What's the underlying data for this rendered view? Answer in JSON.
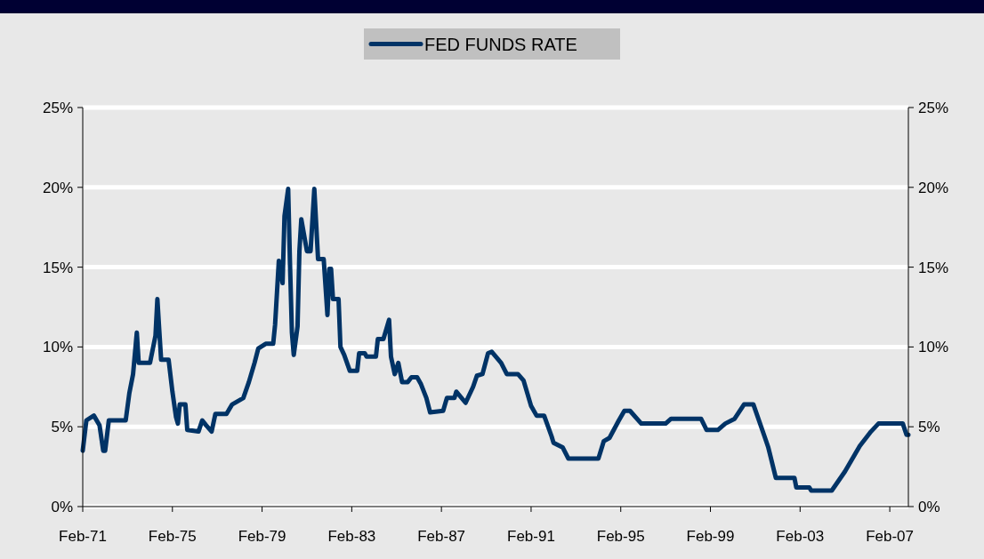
{
  "chart_data": {
    "type": "line",
    "legend": "top",
    "grid": "y",
    "marker": "none",
    "line_style": "solid",
    "xlim": [
      "1971-02",
      "2007-12"
    ],
    "xticks": [
      {
        "value": "1971-02",
        "label": "Feb-71"
      },
      {
        "value": "1975-02",
        "label": "Feb-75"
      },
      {
        "value": "1979-02",
        "label": "Feb-79"
      },
      {
        "value": "1983-02",
        "label": "Feb-83"
      },
      {
        "value": "1987-02",
        "label": "Feb-87"
      },
      {
        "value": "1991-02",
        "label": "Feb-91"
      },
      {
        "value": "1995-02",
        "label": "Feb-95"
      },
      {
        "value": "1999-02",
        "label": "Feb-99"
      },
      {
        "value": "2003-02",
        "label": "Feb-03"
      },
      {
        "value": "2007-02",
        "label": "Feb-07"
      }
    ],
    "ylim": [
      0,
      25
    ],
    "yticks": [
      {
        "value": 0,
        "label": "0%"
      },
      {
        "value": 5,
        "label": "5%"
      },
      {
        "value": 10,
        "label": "10%"
      },
      {
        "value": 15,
        "label": "15%"
      },
      {
        "value": 20,
        "label": "20%"
      },
      {
        "value": 25,
        "label": "25%"
      }
    ],
    "y2lim": [
      0,
      25
    ],
    "y2ticks": [
      {
        "value": 0,
        "label": "0%"
      },
      {
        "value": 5,
        "label": "5%"
      },
      {
        "value": 10,
        "label": "10%"
      },
      {
        "value": 15,
        "label": "15%"
      },
      {
        "value": 20,
        "label": "20%"
      },
      {
        "value": 25,
        "label": "25%"
      }
    ],
    "x": [
      "1971-02",
      "1971-04",
      "1971-08",
      "1971-11",
      "1972-01",
      "1972-02",
      "1972-04",
      "1973-01",
      "1973-03",
      "1973-05",
      "1973-07",
      "1973-08",
      "1974-02",
      "1974-05",
      "1974-06",
      "1974-07",
      "1974-08",
      "1974-12",
      "1975-02",
      "1975-04",
      "1975-05",
      "1975-06",
      "1975-09",
      "1975-10",
      "1976-04",
      "1976-06",
      "1976-08",
      "1976-11",
      "1977-01",
      "1977-07",
      "1977-10",
      "1978-04",
      "1978-07",
      "1978-10",
      "1978-12",
      "1979-04",
      "1979-08",
      "1979-09",
      "1979-11",
      "1980-01",
      "1980-02",
      "1980-04",
      "1980-05",
      "1980-06",
      "1980-07",
      "1980-09",
      "1980-10",
      "1980-11",
      "1981-02",
      "1981-04",
      "1981-06",
      "1981-08",
      "1981-11",
      "1982-01",
      "1982-02",
      "1982-03",
      "1982-04",
      "1982-07",
      "1982-08",
      "1982-10",
      "1983-01",
      "1983-05",
      "1983-06",
      "1983-09",
      "1983-10",
      "1984-03",
      "1984-04",
      "1984-07",
      "1984-10",
      "1984-11",
      "1985-01",
      "1985-03",
      "1985-05",
      "1985-08",
      "1985-10",
      "1986-01",
      "1986-03",
      "1986-06",
      "1986-08",
      "1987-03",
      "1987-05",
      "1987-09",
      "1987-10",
      "1988-03",
      "1988-07",
      "1988-09",
      "1988-12",
      "1989-03",
      "1989-05",
      "1989-10",
      "1990-01",
      "1990-07",
      "1990-10",
      "1991-02",
      "1991-05",
      "1991-09",
      "1992-01",
      "1992-02",
      "1992-07",
      "1992-10",
      "1994-02",
      "1994-05",
      "1994-08",
      "1995-01",
      "1995-04",
      "1995-07",
      "1996-01",
      "1997-02",
      "1997-05",
      "1998-09",
      "1998-12",
      "1999-06",
      "1999-10",
      "2000-03",
      "2000-08",
      "2001-01",
      "2001-07",
      "2001-09",
      "2002-01",
      "2002-11",
      "2002-12",
      "2003-07",
      "2003-08",
      "2004-07",
      "2005-02",
      "2005-10",
      "2006-04",
      "2006-08",
      "2007-09",
      "2007-11",
      "2007-12"
    ],
    "series": [
      {
        "name": "FED FUNDS RATE",
        "color": "#003366",
        "values": [
          3.5,
          5.4,
          5.7,
          5.1,
          3.5,
          3.5,
          5.4,
          5.4,
          7.1,
          8.3,
          10.9,
          9.0,
          9.0,
          10.7,
          13.0,
          11.1,
          9.2,
          9.2,
          7.2,
          5.6,
          5.2,
          6.4,
          6.4,
          4.8,
          4.7,
          5.4,
          5.1,
          4.7,
          5.8,
          5.8,
          6.4,
          6.8,
          7.8,
          9.0,
          9.9,
          10.2,
          10.2,
          11.4,
          15.4,
          14.0,
          18.2,
          19.9,
          15.2,
          10.9,
          9.5,
          11.3,
          16.0,
          18.0,
          16.0,
          16.0,
          19.9,
          15.5,
          15.5,
          12.0,
          14.9,
          14.9,
          13.0,
          13.0,
          10.0,
          9.5,
          8.5,
          8.5,
          9.6,
          9.6,
          9.4,
          9.4,
          10.5,
          10.5,
          11.7,
          9.4,
          8.3,
          9.0,
          7.8,
          7.8,
          8.1,
          8.1,
          7.7,
          6.8,
          5.9,
          6.0,
          6.8,
          6.8,
          7.2,
          6.5,
          7.5,
          8.2,
          8.3,
          9.6,
          9.7,
          9.0,
          8.3,
          8.3,
          7.9,
          6.3,
          5.7,
          5.7,
          4.4,
          4.0,
          3.7,
          3.0,
          3.0,
          4.1,
          4.3,
          5.4,
          6.0,
          6.0,
          5.2,
          5.2,
          5.5,
          5.5,
          4.8,
          4.8,
          5.2,
          5.5,
          6.4,
          6.4,
          4.4,
          3.7,
          1.8,
          1.8,
          1.2,
          1.2,
          1.0,
          1.0,
          2.2,
          3.8,
          4.7,
          5.2,
          5.2,
          4.5,
          4.5
        ]
      }
    ]
  }
}
